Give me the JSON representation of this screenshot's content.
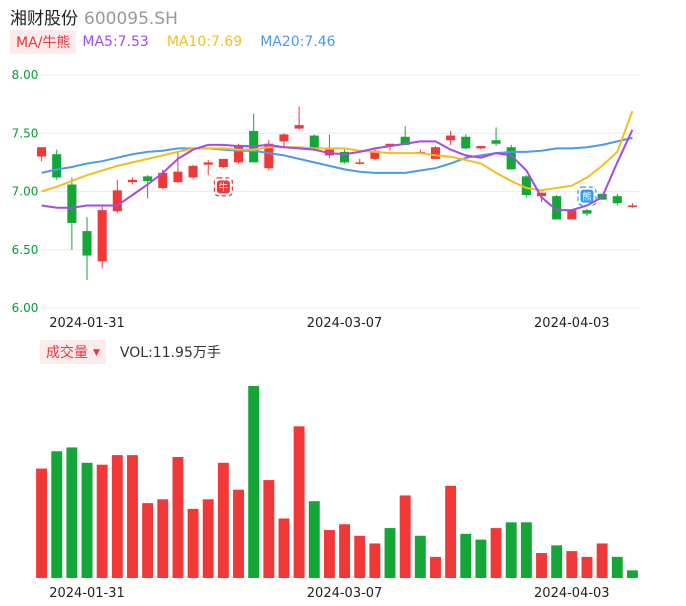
{
  "header": {
    "name": "湘财股份",
    "code": "600095.SH"
  },
  "ma_legend": {
    "toggle_label": "MA/牛熊",
    "items": [
      {
        "label": "MA5:7.53",
        "color": "#a34be6"
      },
      {
        "label": "MA10:7.69",
        "color": "#f5bd1f"
      },
      {
        "label": "MA20:7.46",
        "color": "#4a9be8"
      }
    ]
  },
  "volume_legend": {
    "toggle_label": "成交量",
    "value_label": "VOL:11.95万手"
  },
  "colors": {
    "up": "#f03838",
    "down": "#14a637",
    "grid": "#ececec",
    "axis_text": "#0a9b3a"
  },
  "chart_data": [
    {
      "type": "candlestick",
      "y_ticks": [
        "8.00",
        "7.50",
        "7.00",
        "6.50",
        "6.00"
      ],
      "ylim": [
        6.0,
        8.0
      ],
      "x_tick_labels": [
        {
          "label": "2024-01-31",
          "index": 3
        },
        {
          "label": "2024-03-07",
          "index": 20
        },
        {
          "label": "2024-04-03",
          "index": 35
        }
      ],
      "ohlc": [
        [
          7.3,
          7.38,
          7.26,
          7.38
        ],
        [
          7.32,
          7.36,
          7.1,
          7.12
        ],
        [
          7.06,
          7.12,
          6.5,
          6.73
        ],
        [
          6.66,
          6.78,
          6.24,
          6.45
        ],
        [
          6.4,
          6.87,
          6.34,
          6.84
        ],
        [
          6.83,
          7.1,
          6.82,
          7.01
        ],
        [
          7.08,
          7.12,
          7.06,
          7.1
        ],
        [
          7.13,
          7.14,
          6.94,
          7.09
        ],
        [
          7.03,
          7.19,
          7.02,
          7.16
        ],
        [
          7.08,
          7.33,
          7.07,
          7.17
        ],
        [
          7.12,
          7.23,
          7.11,
          7.22
        ],
        [
          7.23,
          7.27,
          7.14,
          7.25
        ],
        [
          7.21,
          7.28,
          7.2,
          7.28
        ],
        [
          7.25,
          7.41,
          7.24,
          7.4
        ],
        [
          7.52,
          7.67,
          7.26,
          7.25
        ],
        [
          7.2,
          7.44,
          7.18,
          7.41
        ],
        [
          7.43,
          7.5,
          7.37,
          7.49
        ],
        [
          7.54,
          7.73,
          7.53,
          7.57
        ],
        [
          7.48,
          7.49,
          7.36,
          7.37
        ],
        [
          7.31,
          7.49,
          7.29,
          7.36
        ],
        [
          7.34,
          7.36,
          7.24,
          7.25
        ],
        [
          7.24,
          7.28,
          7.23,
          7.25
        ],
        [
          7.28,
          7.37,
          7.27,
          7.35
        ],
        [
          7.39,
          7.4,
          7.35,
          7.41
        ],
        [
          7.47,
          7.56,
          7.4,
          7.4
        ],
        [
          7.34,
          7.36,
          7.33,
          7.34
        ],
        [
          7.28,
          7.39,
          7.28,
          7.38
        ],
        [
          7.44,
          7.52,
          7.4,
          7.48
        ],
        [
          7.47,
          7.49,
          7.36,
          7.37
        ],
        [
          7.37,
          7.39,
          7.36,
          7.39
        ],
        [
          7.44,
          7.55,
          7.39,
          7.41
        ],
        [
          7.38,
          7.4,
          7.19,
          7.19
        ],
        [
          7.13,
          7.14,
          6.95,
          6.97
        ],
        [
          6.96,
          6.99,
          6.91,
          6.99
        ],
        [
          6.96,
          6.97,
          6.76,
          6.76
        ],
        [
          6.76,
          6.85,
          6.76,
          6.84
        ],
        [
          6.84,
          6.85,
          6.79,
          6.81
        ],
        [
          6.98,
          6.98,
          6.93,
          6.93
        ],
        [
          6.96,
          6.98,
          6.88,
          6.9
        ],
        [
          6.88,
          6.9,
          6.86,
          6.88
        ]
      ],
      "ma5": [
        6.88,
        6.86,
        6.86,
        6.88,
        6.88,
        6.88,
        6.97,
        7.06,
        7.16,
        7.28,
        7.36,
        7.4,
        7.4,
        7.39,
        7.39,
        7.4,
        7.38,
        7.37,
        7.36,
        7.33,
        7.32,
        7.34,
        7.37,
        7.39,
        7.41,
        7.43,
        7.43,
        7.36,
        7.31,
        7.29,
        7.33,
        7.31,
        7.18,
        6.95,
        6.84,
        6.84,
        6.88,
        6.95,
        7.25,
        7.53
      ],
      "ma10": [
        7.0,
        7.04,
        7.09,
        7.14,
        7.18,
        7.22,
        7.25,
        7.28,
        7.31,
        7.34,
        7.37,
        7.37,
        7.37,
        7.36,
        7.36,
        7.38,
        7.38,
        7.38,
        7.37,
        7.37,
        7.37,
        7.35,
        7.34,
        7.33,
        7.33,
        7.33,
        7.31,
        7.3,
        7.27,
        7.24,
        7.16,
        7.09,
        7.03,
        7.01,
        7.03,
        7.05,
        7.12,
        7.22,
        7.34,
        7.69
      ],
      "ma20": [
        7.16,
        7.19,
        7.21,
        7.24,
        7.26,
        7.29,
        7.32,
        7.34,
        7.35,
        7.37,
        7.37,
        7.37,
        7.36,
        7.35,
        7.35,
        7.33,
        7.31,
        7.28,
        7.25,
        7.22,
        7.19,
        7.17,
        7.16,
        7.16,
        7.16,
        7.18,
        7.2,
        7.24,
        7.29,
        7.31,
        7.33,
        7.34,
        7.34,
        7.35,
        7.37,
        7.37,
        7.38,
        7.4,
        7.43,
        7.46
      ],
      "annotations": [
        {
          "label": "牛",
          "index": 12,
          "price": 7.04,
          "color": "#f03838"
        },
        {
          "label": "熊",
          "index": 36,
          "price": 6.96,
          "color": "#2f9bf3"
        }
      ]
    },
    {
      "type": "bar",
      "name": "成交量",
      "x_tick_labels": [
        {
          "label": "2024-01-31",
          "index": 3
        },
        {
          "label": "2024-03-07",
          "index": 20
        },
        {
          "label": "2024-04-03",
          "index": 35
        }
      ],
      "values": [
        0.57,
        0.66,
        0.68,
        0.6,
        0.59,
        0.64,
        0.64,
        0.39,
        0.41,
        0.63,
        0.36,
        0.41,
        0.6,
        0.46,
        1.0,
        0.51,
        0.31,
        0.79,
        0.4,
        0.25,
        0.28,
        0.22,
        0.18,
        0.26,
        0.43,
        0.22,
        0.11,
        0.48,
        0.23,
        0.2,
        0.26,
        0.29,
        0.29,
        0.13,
        0.17,
        0.14,
        0.11,
        0.18,
        0.11,
        0.04
      ],
      "directions": [
        "up",
        "down",
        "down",
        "down",
        "up",
        "up",
        "up",
        "up",
        "up",
        "up",
        "up",
        "up",
        "up",
        "up",
        "down",
        "up",
        "up",
        "up",
        "down",
        "up",
        "up",
        "up",
        "up",
        "down",
        "up",
        "down",
        "up",
        "up",
        "down",
        "down",
        "up",
        "down",
        "down",
        "up",
        "down",
        "up",
        "up",
        "up",
        "down",
        "down"
      ]
    }
  ]
}
